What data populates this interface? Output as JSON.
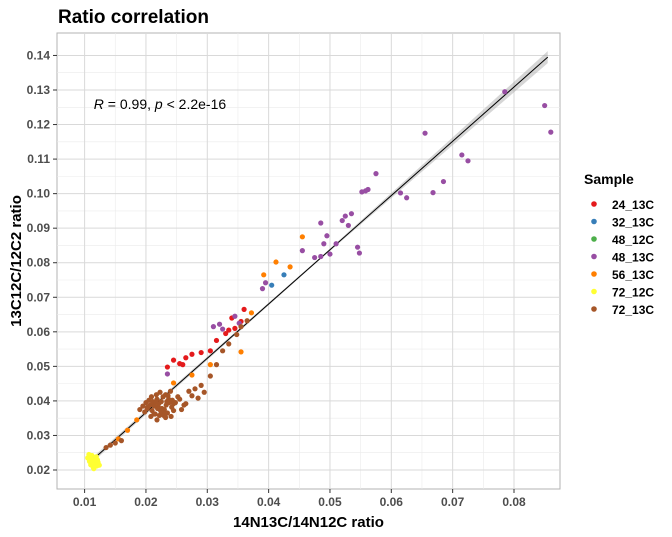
{
  "chart_data": {
    "type": "scatter",
    "title": "Ratio correlation",
    "xlabel": "14N13C/14N12C ratio",
    "ylabel": "13C12C/12C2 ratio",
    "xlim": [
      0.0055,
      0.0875
    ],
    "ylim": [
      0.0145,
      0.1465
    ],
    "x_ticks": [
      0.01,
      0.02,
      0.03,
      0.04,
      0.05,
      0.06,
      0.07,
      0.08
    ],
    "x_tick_labels": [
      "0.01",
      "0.02",
      "0.03",
      "0.04",
      "0.05",
      "0.06",
      "0.07",
      "0.08"
    ],
    "y_ticks": [
      0.02,
      0.03,
      0.04,
      0.05,
      0.06,
      0.07,
      0.08,
      0.09,
      0.1,
      0.11,
      0.12,
      0.13,
      0.14
    ],
    "y_tick_labels": [
      "0.02",
      "0.03",
      "0.04",
      "0.05",
      "0.06",
      "0.07",
      "0.08",
      "0.09",
      "0.10",
      "0.11",
      "0.12",
      "0.13",
      "0.14"
    ],
    "grid": true,
    "legend_position": "right",
    "legend_title": "Sample",
    "annotation": {
      "r_symbol": "R",
      "r_text": " = 0.99, ",
      "p_symbol": "p",
      "p_text": " < 2.2e-16",
      "x": 0.0115,
      "y": 0.1245
    },
    "fit_line": {
      "x": [
        0.011,
        0.0855
      ],
      "y": [
        0.0225,
        0.1395
      ]
    },
    "series": [
      {
        "name": "24_13C",
        "color": "#E41A1C",
        "x": [
          0.0245,
          0.0265,
          0.0275,
          0.029,
          0.0305,
          0.0255,
          0.0235,
          0.033,
          0.0345,
          0.0355,
          0.036,
          0.0335,
          0.0315,
          0.034,
          0.026
        ],
        "y": [
          0.0518,
          0.0525,
          0.0535,
          0.054,
          0.0545,
          0.0508,
          0.0498,
          0.0595,
          0.061,
          0.063,
          0.0665,
          0.0605,
          0.0575,
          0.064,
          0.0505
        ]
      },
      {
        "name": "32_13C",
        "color": "#377EB8",
        "x": [
          0.0425,
          0.0405
        ],
        "y": [
          0.0765,
          0.0735
        ]
      },
      {
        "name": "48_12C",
        "color": "#4DAF4A",
        "x": [],
        "y": []
      },
      {
        "name": "48_13C",
        "color": "#984EA3",
        "x": [
          0.0235,
          0.031,
          0.032,
          0.0325,
          0.0345,
          0.0352,
          0.039,
          0.0395,
          0.0455,
          0.0475,
          0.0485,
          0.049,
          0.0495,
          0.0485,
          0.05,
          0.051,
          0.052,
          0.0525,
          0.053,
          0.0535,
          0.0545,
          0.0548,
          0.0552,
          0.0558,
          0.0562,
          0.0575,
          0.0615,
          0.0625,
          0.0655,
          0.0668,
          0.0685,
          0.0715,
          0.0725,
          0.0785,
          0.085,
          0.086
        ],
        "y": [
          0.0478,
          0.0615,
          0.0622,
          0.0608,
          0.0645,
          0.0625,
          0.0725,
          0.0742,
          0.0835,
          0.0815,
          0.0818,
          0.0855,
          0.0878,
          0.0915,
          0.0825,
          0.0855,
          0.0922,
          0.0935,
          0.0908,
          0.0942,
          0.0845,
          0.0828,
          0.1005,
          0.1008,
          0.1012,
          0.1058,
          0.1002,
          0.0988,
          0.1175,
          0.1003,
          0.1035,
          0.1112,
          0.1095,
          0.1295,
          0.1255,
          0.1178
        ]
      },
      {
        "name": "56_13C",
        "color": "#FF7F00",
        "x": [
          0.0215,
          0.0185,
          0.017,
          0.0155,
          0.0245,
          0.0275,
          0.0305,
          0.0355,
          0.0372,
          0.0392,
          0.0412,
          0.0435,
          0.0455
        ],
        "y": [
          0.0395,
          0.0345,
          0.0315,
          0.029,
          0.0452,
          0.0475,
          0.0505,
          0.0542,
          0.0655,
          0.0765,
          0.0802,
          0.0788,
          0.0875
        ]
      },
      {
        "name": "72_12C",
        "color": "#FFFF33",
        "x": [
          0.0105,
          0.0108,
          0.011,
          0.0112,
          0.0114,
          0.0116,
          0.0118,
          0.012,
          0.0122,
          0.0124,
          0.0107,
          0.0111,
          0.0115,
          0.0119,
          0.0113,
          0.0109,
          0.0121
        ],
        "y": [
          0.0235,
          0.0225,
          0.0215,
          0.0242,
          0.0208,
          0.0228,
          0.0218,
          0.0212,
          0.0222,
          0.0214,
          0.0245,
          0.0232,
          0.0204,
          0.0238,
          0.0221,
          0.0226,
          0.0229
        ]
      },
      {
        "name": "72_13C",
        "color": "#A65628",
        "x": [
          0.0135,
          0.0142,
          0.015,
          0.016,
          0.019,
          0.0195,
          0.0198,
          0.02,
          0.0202,
          0.0205,
          0.0207,
          0.021,
          0.0212,
          0.0215,
          0.0218,
          0.022,
          0.0222,
          0.0225,
          0.0228,
          0.023,
          0.0232,
          0.0235,
          0.0238,
          0.024,
          0.0242,
          0.0245,
          0.0208,
          0.0213,
          0.0217,
          0.0223,
          0.0227,
          0.0233,
          0.0237,
          0.0203,
          0.0211,
          0.0219,
          0.0229,
          0.0236,
          0.0243,
          0.0214,
          0.0221,
          0.0226,
          0.0231,
          0.0209,
          0.0224,
          0.0234,
          0.0248,
          0.0252,
          0.0258,
          0.0265,
          0.027,
          0.0275,
          0.028,
          0.0285,
          0.029,
          0.0295,
          0.0305,
          0.0315,
          0.0325,
          0.0335,
          0.0348,
          0.0355,
          0.0365,
          0.0245,
          0.0255,
          0.0262,
          0.0218,
          0.0232,
          0.0216,
          0.0241
        ],
        "y": [
          0.0265,
          0.0272,
          0.0278,
          0.0285,
          0.0375,
          0.0385,
          0.0368,
          0.0395,
          0.0378,
          0.0402,
          0.0388,
          0.0372,
          0.0392,
          0.0362,
          0.0405,
          0.0382,
          0.0358,
          0.0398,
          0.0412,
          0.0375,
          0.0418,
          0.0365,
          0.0395,
          0.0428,
          0.0382,
          0.0372,
          0.0355,
          0.0362,
          0.0418,
          0.0425,
          0.0365,
          0.0388,
          0.0405,
          0.0382,
          0.0398,
          0.0378,
          0.0358,
          0.0415,
          0.0402,
          0.0385,
          0.0392,
          0.0378,
          0.0362,
          0.0412,
          0.0371,
          0.0398,
          0.0395,
          0.0412,
          0.0375,
          0.0392,
          0.0428,
          0.0415,
          0.0435,
          0.0408,
          0.0445,
          0.0425,
          0.0472,
          0.0505,
          0.0545,
          0.0565,
          0.0592,
          0.0615,
          0.0632,
          0.0392,
          0.0405,
          0.0388,
          0.0345,
          0.0352,
          0.0398,
          0.0355
        ]
      }
    ]
  }
}
